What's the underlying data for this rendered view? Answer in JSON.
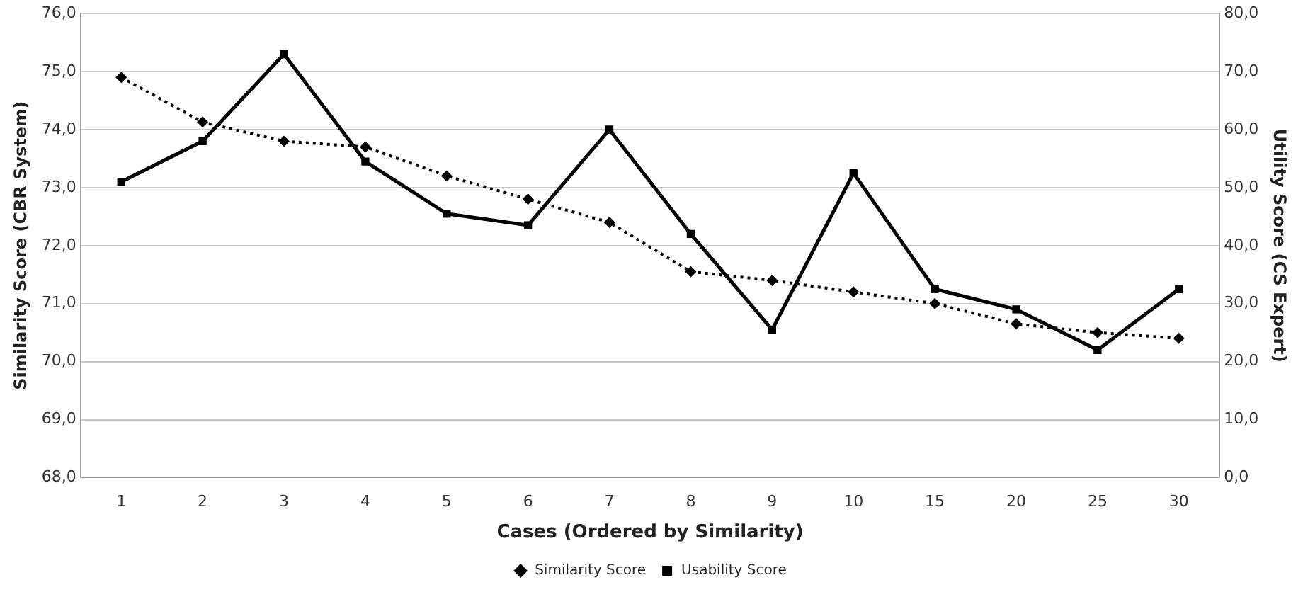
{
  "chart_data": {
    "type": "line",
    "xlabel": "Cases (Ordered by Similarity)",
    "ylabel": "Similarity Score (CBR System)",
    "y2label": "Utility Score (CS Expert)",
    "categories": [
      "1",
      "2",
      "3",
      "4",
      "5",
      "6",
      "7",
      "8",
      "9",
      "10",
      "15",
      "20",
      "25",
      "30"
    ],
    "series": [
      {
        "name": "Similarity Score",
        "color": "#000000",
        "marker": "diamond",
        "line_style": "dotted",
        "values": [
          74.9,
          74.13,
          73.8,
          73.7,
          73.2,
          72.8,
          72.4,
          71.55,
          71.4,
          71.2,
          71.0,
          70.65,
          70.5,
          70.4
        ]
      },
      {
        "name": "Usability Score",
        "color": "#000000",
        "marker": "square",
        "line_style": "solid",
        "axis": "y2",
        "values": [
          51,
          58,
          73,
          54.5,
          45.5,
          43.5,
          60,
          42,
          25.5,
          52.5,
          32.5,
          29,
          22,
          32.5
        ]
      }
    ],
    "ylim": [
      68,
      76
    ],
    "yticks": [
      {
        "value": 68,
        "label": "68,0"
      },
      {
        "value": 69,
        "label": "69,0"
      },
      {
        "value": 70,
        "label": "70,0"
      },
      {
        "value": 71,
        "label": "71,0"
      },
      {
        "value": 72,
        "label": "72,0"
      },
      {
        "value": 73,
        "label": "73,0"
      },
      {
        "value": 74,
        "label": "74,0"
      },
      {
        "value": 75,
        "label": "75,0"
      },
      {
        "value": 76,
        "label": "76,0"
      }
    ],
    "y2lim": [
      0,
      80
    ],
    "y2ticks": [
      {
        "value": 0,
        "label": "0,0"
      },
      {
        "value": 10,
        "label": "10,0"
      },
      {
        "value": 20,
        "label": "20,0"
      },
      {
        "value": 30,
        "label": "30,0"
      },
      {
        "value": 40,
        "label": "40,0"
      },
      {
        "value": 50,
        "label": "50,0"
      },
      {
        "value": 60,
        "label": "60,0"
      },
      {
        "value": 70,
        "label": "70,0"
      },
      {
        "value": 80,
        "label": "80,0"
      }
    ],
    "grid": "y",
    "legend": "bottom"
  }
}
